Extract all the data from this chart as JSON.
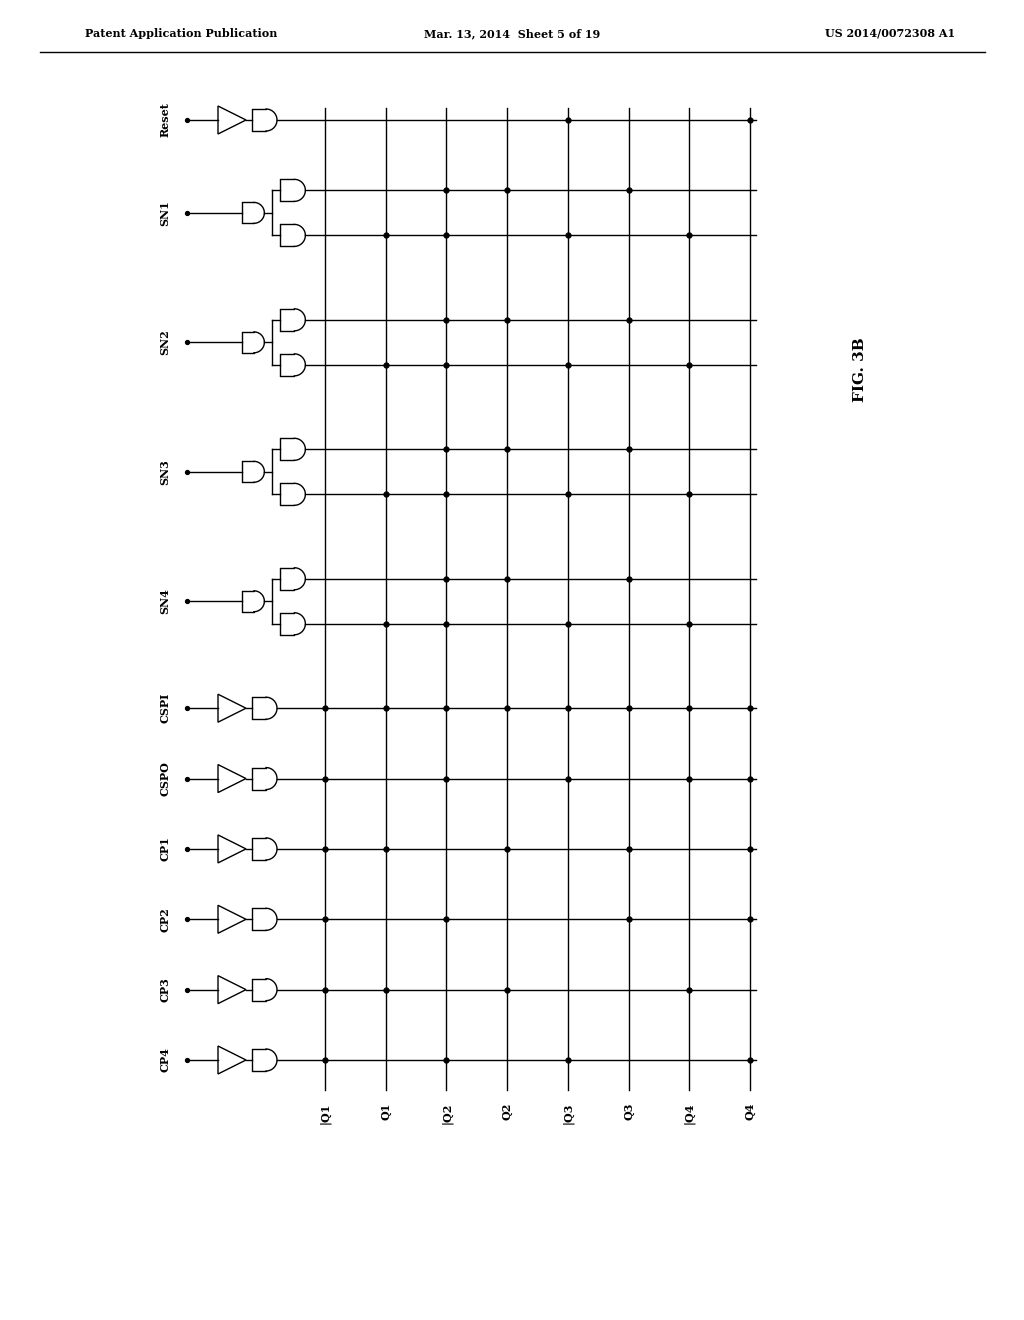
{
  "background_color": "#ffffff",
  "line_color": "#000000",
  "header_left": "Patent Application Publication",
  "header_center": "Mar. 13, 2014  Sheet 5 of 19",
  "header_right": "US 2014/0072308 A1",
  "fig_label": "FIG. 3B",
  "output_labels": [
    "|Q1",
    "Q1",
    "|Q2",
    "Q2",
    "|Q3",
    "Q3",
    "|Q4",
    "Q4"
  ],
  "groups": [
    {
      "label": "Reset",
      "type": "buf",
      "rows": 1
    },
    {
      "label": "SN1",
      "type": "and2",
      "rows": 2
    },
    {
      "label": "SN2",
      "type": "and2",
      "rows": 2
    },
    {
      "label": "SN3",
      "type": "and2",
      "rows": 2
    },
    {
      "label": "SN4",
      "type": "and2",
      "rows": 2
    },
    {
      "label": "CSPI",
      "type": "buf",
      "rows": 1
    },
    {
      "label": "CSPO",
      "type": "buf",
      "rows": 1
    },
    {
      "label": "CP1",
      "type": "buf",
      "rows": 1
    },
    {
      "label": "CP2",
      "type": "buf",
      "rows": 1
    },
    {
      "label": "CP3",
      "type": "buf",
      "rows": 1
    },
    {
      "label": "CP4",
      "type": "buf",
      "rows": 1
    }
  ],
  "dot_spec": {
    "0": [
      4,
      7
    ],
    "1": [
      2,
      3,
      5
    ],
    "2": [
      1,
      2,
      4,
      6
    ],
    "3": [
      2,
      3,
      5
    ],
    "4": [
      1,
      2,
      4,
      6
    ],
    "5": [
      2,
      3,
      5
    ],
    "6": [
      1,
      2,
      4,
      6
    ],
    "7": [
      2,
      3,
      5
    ],
    "8": [
      1,
      2,
      4,
      6
    ],
    "9": [
      0,
      1,
      2,
      3,
      4,
      5,
      6,
      7
    ],
    "10": [
      0,
      2,
      4,
      6,
      7
    ],
    "11": [
      0,
      1,
      3,
      5,
      7
    ],
    "12": [
      0,
      2,
      5,
      7
    ],
    "13": [
      0,
      1,
      3,
      6
    ],
    "14": [
      0,
      2,
      4,
      7
    ]
  }
}
